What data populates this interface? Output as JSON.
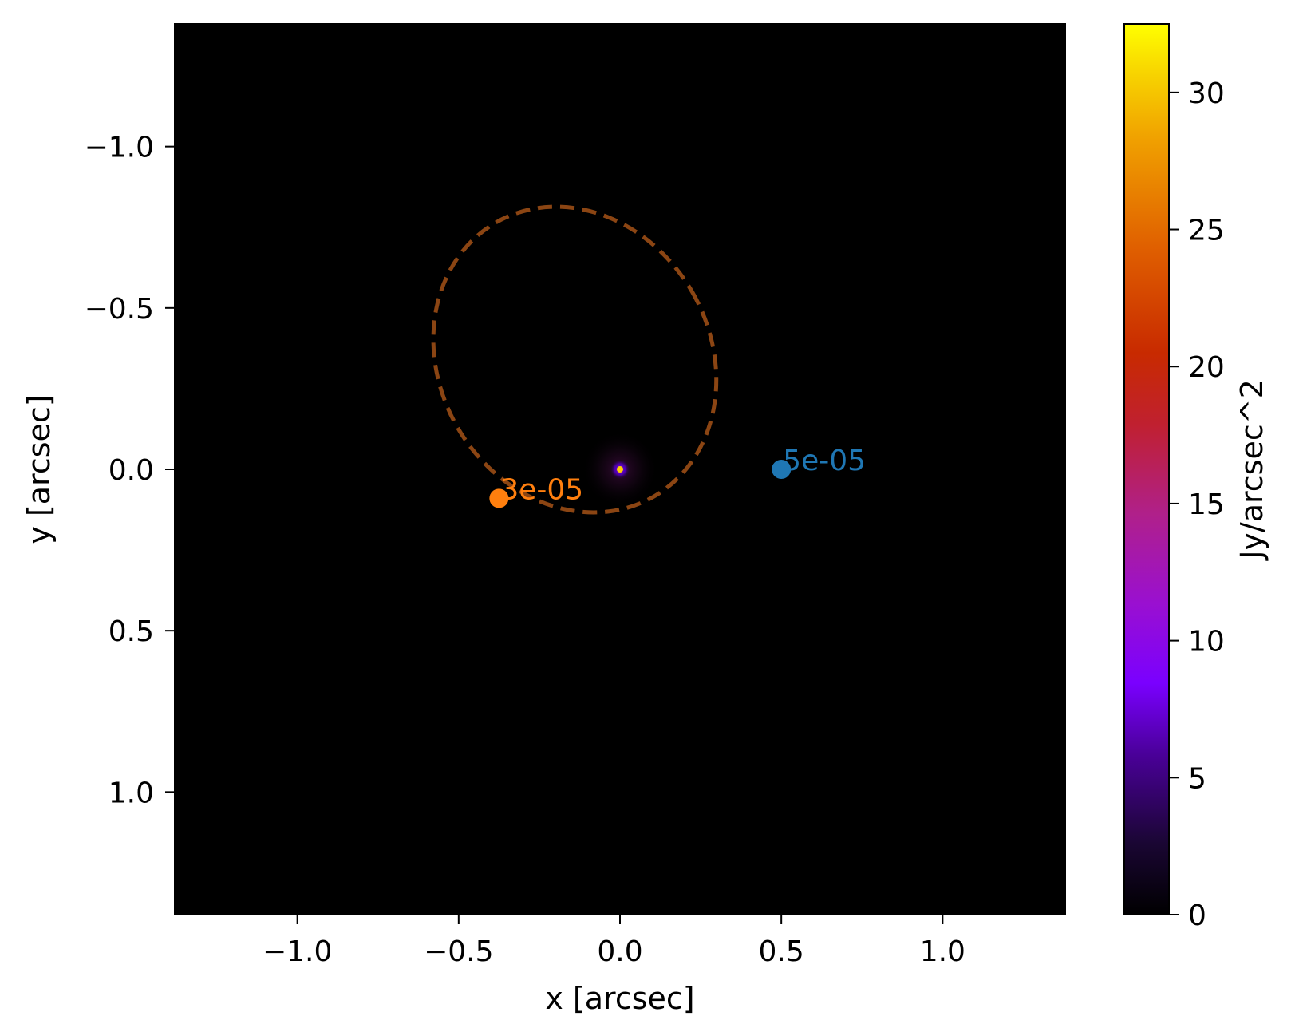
{
  "chart_data": {
    "type": "heatmap",
    "title": "",
    "xlabel": "x [arcsec]",
    "ylabel": "y [arcsec]",
    "xlim": [
      -1.38,
      1.38
    ],
    "ylim": [
      1.38,
      -1.38
    ],
    "y_inverted": true,
    "xticks": [
      -1.0,
      -0.5,
      0.0,
      0.5,
      1.0
    ],
    "xtick_labels": [
      "−1.0",
      "−0.5",
      "0.0",
      "0.5",
      "1.0"
    ],
    "yticks": [
      -1.0,
      -0.5,
      0.0,
      0.5,
      1.0
    ],
    "ytick_labels": [
      "−1.0",
      "−0.5",
      "0.0",
      "0.5",
      "1.0"
    ],
    "background_value": 0,
    "source_peak": {
      "x": 0.0,
      "y": 0.0,
      "value": 32.5
    },
    "caustic": {
      "style": "dashed",
      "color": "#8b4513",
      "center": [
        -0.14,
        -0.34
      ],
      "semi_axes": [
        0.42,
        0.49
      ],
      "rotation_deg": -30
    },
    "points": [
      {
        "x": 0.5,
        "y": 0.0,
        "label": "5e-05",
        "color": "#1f77b4"
      },
      {
        "x": -0.375,
        "y": 0.09,
        "label": "3e-05",
        "color": "#ff7f0e"
      }
    ],
    "colorbar": {
      "label": "Jy/arcsec^2",
      "colormap": "gnuplot",
      "min": 0,
      "max": 32.5,
      "ticks": [
        0,
        5,
        10,
        15,
        20,
        25,
        30
      ],
      "tick_labels": [
        "0",
        "5",
        "10",
        "15",
        "20",
        "25",
        "30"
      ]
    }
  }
}
